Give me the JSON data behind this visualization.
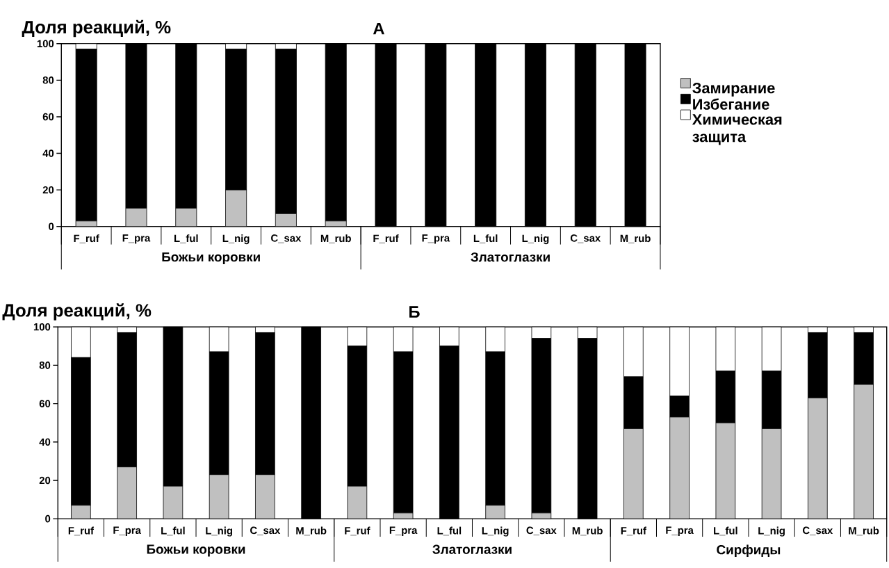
{
  "chart_data": [
    {
      "type": "bar",
      "stacked": true,
      "title": "А",
      "ylabel": "Доля реакций, %",
      "categories": [
        "F_ruf",
        "F_pra",
        "L_ful",
        "L_nig",
        "C_sax",
        "M_rub",
        "F_ruf",
        "F_pra",
        "L_ful",
        "L_nig",
        "C_sax",
        "M_rub"
      ],
      "series": [
        {
          "name": "Замирание",
          "color": "#c0c0c0",
          "values": [
            3,
            10,
            10,
            20,
            7,
            3,
            0,
            0,
            0,
            0,
            0,
            0
          ]
        },
        {
          "name": "Избегание",
          "color": "#000000",
          "values": [
            94,
            90,
            90,
            77,
            90,
            97,
            100,
            100,
            100,
            100,
            100,
            100
          ]
        },
        {
          "name": "Химическая защита",
          "color": "#ffffff",
          "values": [
            3,
            0,
            0,
            3,
            3,
            0,
            0,
            0,
            0,
            0,
            0,
            0
          ]
        }
      ],
      "ylim": [
        0,
        100
      ],
      "yticks": [
        0,
        20,
        40,
        60,
        80,
        100
      ],
      "legend": "right",
      "annotations": [
        "Божьи коровки",
        "Златоглазки"
      ]
    },
    {
      "type": "bar",
      "stacked": true,
      "title": "Б",
      "ylabel": "Доля реакций, %",
      "categories": [
        "F_ruf",
        "F_pra",
        "L_ful",
        "L_nig",
        "C_sax",
        "M_rub",
        "F_ruf",
        "F_pra",
        "L_ful",
        "L_nig",
        "C_sax",
        "M_rub",
        "F_ruf",
        "F_pra",
        "L_ful",
        "L_nig",
        "C_sax",
        "M_rub"
      ],
      "series": [
        {
          "color": "#c0c0c0",
          "values": [
            7,
            27,
            17,
            23,
            23,
            0,
            17,
            3,
            0,
            7,
            3,
            0,
            47,
            53,
            50,
            47,
            63,
            70
          ]
        },
        {
          "color": "#000000",
          "values": [
            77,
            70,
            83,
            64,
            74,
            100,
            73,
            84,
            90,
            80,
            91,
            94,
            27,
            11,
            27,
            30,
            34,
            27
          ]
        },
        {
          "color": "#ffffff",
          "values": [
            16,
            3,
            0,
            13,
            3,
            0,
            10,
            13,
            10,
            13,
            6,
            6,
            26,
            36,
            23,
            23,
            3,
            3
          ]
        }
      ],
      "ylim": [
        0,
        100
      ],
      "yticks": [
        0,
        20,
        40,
        60,
        80,
        100
      ],
      "annotations": [
        "Божьи коровки",
        "Златоглазки",
        "Сирфиды"
      ]
    }
  ]
}
